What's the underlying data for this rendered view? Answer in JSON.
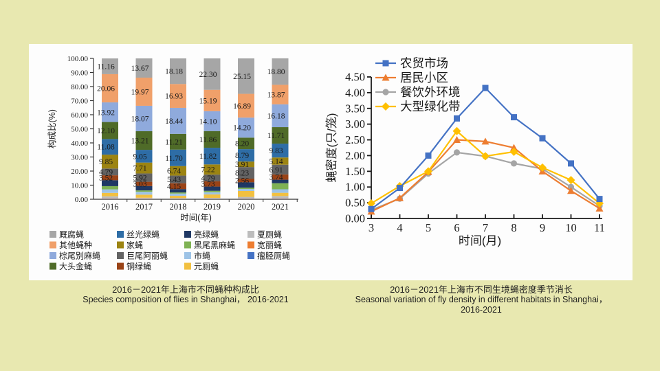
{
  "page": {
    "background_color": "#e8e8b0",
    "panel_color": "#fdfdfd"
  },
  "captions": {
    "left": {
      "zh": "2016－2021年上海市不同蝇种构成比",
      "en": "Species composition of flies in Shanghai， 2016-2021"
    },
    "right": {
      "zh": "2016－2021年上海市不同生境蝇密度季节消长",
      "en": "Seasonal variation of fly density in different habitats in Shanghai，",
      "en2": "2016-2021"
    }
  },
  "chart_data": [
    {
      "type": "bar",
      "stacked": true,
      "xlabel": "时间(年)",
      "ylabel": "构成比(%)",
      "ylim": [
        0,
        100
      ],
      "ytick_step": 10,
      "yticks": [
        "0.00",
        "10.00",
        "20.00",
        "30.00",
        "40.00",
        "50.00",
        "60.00",
        "70.00",
        "80.00",
        "90.00",
        "100.00"
      ],
      "grid": false,
      "legend_position": "bottom",
      "legend_columns": 4,
      "categories": [
        "2016",
        "2017",
        "2018",
        "2019",
        "2020",
        "2021"
      ],
      "series": [
        {
          "name": "厩腐蝇",
          "color": "#a6a6a6",
          "value_labels_shown": true,
          "values": [
            11.16,
            13.67,
            18.18,
            22.3,
            25.15,
            18.8
          ]
        },
        {
          "name": "其他蝇种",
          "color": "#f0a06a",
          "value_labels_shown": true,
          "values": [
            20.06,
            19.97,
            16.93,
            15.19,
            16.89,
            13.87
          ]
        },
        {
          "name": "棕尾别麻蝇",
          "color": "#8faadc",
          "value_labels_shown": true,
          "values": [
            13.92,
            18.07,
            18.44,
            14.1,
            14.2,
            16.18
          ]
        },
        {
          "name": "大头金蝇",
          "color": "#4f6b28",
          "value_labels_shown": true,
          "values": [
            12.1,
            13.21,
            11.21,
            11.86,
            8.2,
            11.71
          ]
        },
        {
          "name": "丝光绿蝇",
          "color": "#2e6da6",
          "value_labels_shown": true,
          "values": [
            11.08,
            9.05,
            11.7,
            11.82,
            8.79,
            9.83
          ]
        },
        {
          "name": "家蝇",
          "color": "#9c8412",
          "value_labels_shown": true,
          "values": [
            9.85,
            7.71,
            6.74,
            7.22,
            3.91,
            5.14
          ]
        },
        {
          "name": "巨尾阿丽蝇",
          "color": "#636363",
          "value_labels_shown": true,
          "values": [
            4.79,
            5.92,
            5.43,
            4.79,
            8.23,
            6.91
          ]
        },
        {
          "name": "铜绿蝇",
          "color": "#9a4317",
          "value_labels_shown": true,
          "values": [
            3.52,
            3.03,
            4.15,
            3.73,
            2.56,
            3.74
          ]
        },
        {
          "name": "亮绿蝇",
          "color": "#1f3864",
          "value_labels_shown": false,
          "values": [
            4.2,
            3.1,
            2.4,
            3.0,
            3.8,
            2.5
          ]
        },
        {
          "name": "黑尾黑麻蝇",
          "color": "#7fb254",
          "value_labels_shown": false,
          "values": [
            2.3,
            1.0,
            0.8,
            1.0,
            1.0,
            4.3
          ]
        },
        {
          "name": "市蝇",
          "color": "#9dc3e6",
          "value_labels_shown": false,
          "values": [
            2.5,
            2.0,
            1.6,
            1.6,
            1.4,
            2.5
          ]
        },
        {
          "name": "元厕蝇",
          "color": "#f2c040",
          "value_labels_shown": false,
          "values": [
            2.4,
            2.2,
            1.6,
            2.4,
            4.2,
            2.3
          ]
        },
        {
          "name": "夏厕蝇",
          "color": "#bcbcbc",
          "value_labels_shown": false,
          "values": [
            1.5,
            0.8,
            0.6,
            0.8,
            1.3,
            1.7
          ]
        },
        {
          "name": "宽丽蝇",
          "color": "#ed7d31",
          "value_labels_shown": false,
          "values": [
            0.3,
            0.2,
            0.1,
            0.1,
            0.2,
            0.3
          ]
        },
        {
          "name": "瘤胫厕蝇",
          "color": "#4472c4",
          "value_labels_shown": false,
          "values": [
            0.3,
            0.07,
            0.12,
            0.09,
            0.17,
            0.27
          ]
        }
      ]
    },
    {
      "type": "line",
      "xlabel": "时间(月)",
      "ylabel": "蝇密度(只/笼)",
      "x": [
        3,
        4,
        5,
        6,
        7,
        8,
        9,
        10,
        11
      ],
      "ylim": [
        0,
        4.5
      ],
      "ytick_step": 0.5,
      "yticks": [
        "0.00",
        "0.50",
        "1.00",
        "1.50",
        "2.00",
        "2.50",
        "3.00",
        "3.50",
        "4.00",
        "4.50"
      ],
      "grid": false,
      "legend_position": "top-left",
      "series": [
        {
          "name": "农贸市场",
          "color": "#4472c4",
          "marker": "square",
          "values": [
            0.3,
            0.97,
            2.0,
            3.18,
            4.15,
            3.22,
            2.55,
            1.75,
            0.62
          ]
        },
        {
          "name": "居民小区",
          "color": "#ed7d31",
          "marker": "triangle",
          "values": [
            0.22,
            0.65,
            1.48,
            2.5,
            2.45,
            2.25,
            1.5,
            0.88,
            0.32
          ]
        },
        {
          "name": "餐饮外环境",
          "color": "#a5a5a5",
          "marker": "circle",
          "values": [
            0.27,
            0.63,
            1.43,
            2.1,
            1.98,
            1.75,
            1.58,
            1.0,
            0.4
          ]
        },
        {
          "name": "大型绿化带",
          "color": "#ffc000",
          "marker": "diamond",
          "values": [
            0.48,
            1.03,
            1.5,
            2.78,
            1.98,
            2.12,
            1.62,
            1.22,
            0.48
          ]
        }
      ]
    }
  ]
}
